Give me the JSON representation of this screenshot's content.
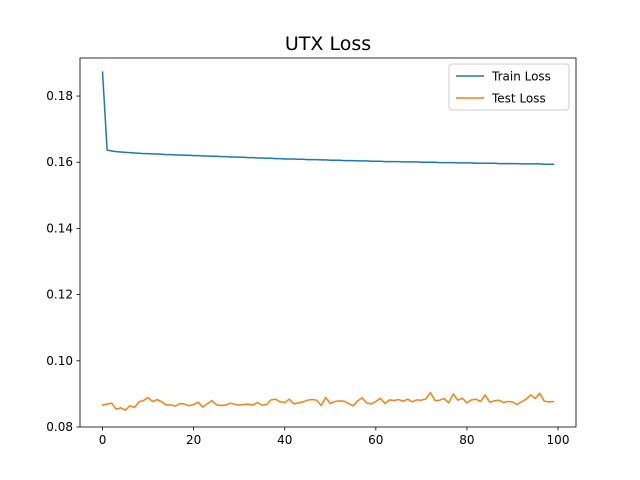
{
  "chart_data": {
    "type": "line",
    "title": "UTX Loss",
    "xlabel": "",
    "ylabel": "",
    "xlim": [
      -4.95,
      103.95
    ],
    "ylim": [
      0.08,
      0.1915
    ],
    "xticks": [
      0,
      20,
      40,
      60,
      80,
      100
    ],
    "yticks": [
      0.08,
      0.1,
      0.12,
      0.14,
      0.16,
      0.18
    ],
    "ytick_labels": [
      "0.08",
      "0.10",
      "0.12",
      "0.14",
      "0.16",
      "0.18"
    ],
    "grid": false,
    "legend_position": "upper-right",
    "series": [
      {
        "name": "Train Loss",
        "color": "#1f77b4",
        "x": [
          0,
          1,
          2,
          3,
          4,
          5,
          6,
          7,
          8,
          9,
          10,
          11,
          12,
          13,
          14,
          15,
          16,
          17,
          18,
          19,
          20,
          21,
          22,
          23,
          24,
          25,
          26,
          27,
          28,
          29,
          30,
          31,
          32,
          33,
          34,
          35,
          36,
          37,
          38,
          39,
          40,
          41,
          42,
          43,
          44,
          45,
          46,
          47,
          48,
          49,
          50,
          51,
          52,
          53,
          54,
          55,
          56,
          57,
          58,
          59,
          60,
          61,
          62,
          63,
          64,
          65,
          66,
          67,
          68,
          69,
          70,
          71,
          72,
          73,
          74,
          75,
          76,
          77,
          78,
          79,
          80,
          81,
          82,
          83,
          84,
          85,
          86,
          87,
          88,
          89,
          90,
          91,
          92,
          93,
          94,
          95,
          96,
          97,
          98,
          99
        ],
        "values": [
          0.1872,
          0.1637,
          0.1634,
          0.1632,
          0.1631,
          0.163,
          0.1629,
          0.1628,
          0.1627,
          0.1626,
          0.1626,
          0.1625,
          0.1625,
          0.1624,
          0.1623,
          0.1623,
          0.1622,
          0.1622,
          0.1621,
          0.1621,
          0.162,
          0.162,
          0.1619,
          0.1619,
          0.1618,
          0.1618,
          0.1617,
          0.1617,
          0.1616,
          0.1616,
          0.1615,
          0.1615,
          0.1614,
          0.1614,
          0.1613,
          0.1613,
          0.1612,
          0.1612,
          0.1611,
          0.1611,
          0.161,
          0.161,
          0.161,
          0.1609,
          0.1609,
          0.1608,
          0.1608,
          0.1608,
          0.1607,
          0.1607,
          0.1606,
          0.1606,
          0.1606,
          0.1605,
          0.1605,
          0.1605,
          0.1604,
          0.1604,
          0.1604,
          0.1603,
          0.1603,
          0.1603,
          0.1602,
          0.1602,
          0.1602,
          0.1602,
          0.1601,
          0.1601,
          0.1601,
          0.1601,
          0.16,
          0.16,
          0.16,
          0.16,
          0.1599,
          0.1599,
          0.1599,
          0.1599,
          0.1598,
          0.1598,
          0.1598,
          0.1598,
          0.1597,
          0.1597,
          0.1597,
          0.1597,
          0.1597,
          0.1596,
          0.1596,
          0.1596,
          0.1596,
          0.1596,
          0.1595,
          0.1595,
          0.1595,
          0.1595,
          0.1595,
          0.1594,
          0.1594,
          0.1594
        ]
      },
      {
        "name": "Test Loss",
        "color": "#ff7f0e",
        "x": [
          0,
          1,
          2,
          3,
          4,
          5,
          6,
          7,
          8,
          9,
          10,
          11,
          12,
          13,
          14,
          15,
          16,
          17,
          18,
          19,
          20,
          21,
          22,
          23,
          24,
          25,
          26,
          27,
          28,
          29,
          30,
          31,
          32,
          33,
          34,
          35,
          36,
          37,
          38,
          39,
          40,
          41,
          42,
          43,
          44,
          45,
          46,
          47,
          48,
          49,
          50,
          51,
          52,
          53,
          54,
          55,
          56,
          57,
          58,
          59,
          60,
          61,
          62,
          63,
          64,
          65,
          66,
          67,
          68,
          69,
          70,
          71,
          72,
          73,
          74,
          75,
          76,
          77,
          78,
          79,
          80,
          81,
          82,
          83,
          84,
          85,
          86,
          87,
          88,
          89,
          90,
          91,
          92,
          93,
          94,
          95,
          96,
          97,
          98,
          99
        ],
        "values": [
          0.0866,
          0.0869,
          0.0872,
          0.0854,
          0.0858,
          0.0851,
          0.0864,
          0.0859,
          0.0876,
          0.088,
          0.0889,
          0.0877,
          0.0883,
          0.0876,
          0.0866,
          0.0867,
          0.0863,
          0.0871,
          0.0869,
          0.0864,
          0.0868,
          0.0875,
          0.086,
          0.087,
          0.088,
          0.0867,
          0.0865,
          0.0866,
          0.0872,
          0.0869,
          0.0866,
          0.0868,
          0.0869,
          0.0866,
          0.0874,
          0.0866,
          0.0868,
          0.0882,
          0.0884,
          0.0876,
          0.0874,
          0.0884,
          0.087,
          0.0873,
          0.0876,
          0.0881,
          0.0883,
          0.0881,
          0.0865,
          0.0889,
          0.0871,
          0.0877,
          0.0879,
          0.0878,
          0.0871,
          0.0864,
          0.0879,
          0.0888,
          0.0872,
          0.087,
          0.0877,
          0.0887,
          0.0871,
          0.0882,
          0.088,
          0.0883,
          0.0878,
          0.0884,
          0.0876,
          0.0882,
          0.0881,
          0.0885,
          0.0904,
          0.088,
          0.0881,
          0.0886,
          0.0873,
          0.09,
          0.0881,
          0.0887,
          0.0873,
          0.0882,
          0.0884,
          0.0877,
          0.0897,
          0.0875,
          0.0879,
          0.0881,
          0.0874,
          0.0877,
          0.0876,
          0.0868,
          0.0876,
          0.0884,
          0.0897,
          0.0886,
          0.0902,
          0.0878,
          0.0876,
          0.0877
        ]
      }
    ]
  }
}
